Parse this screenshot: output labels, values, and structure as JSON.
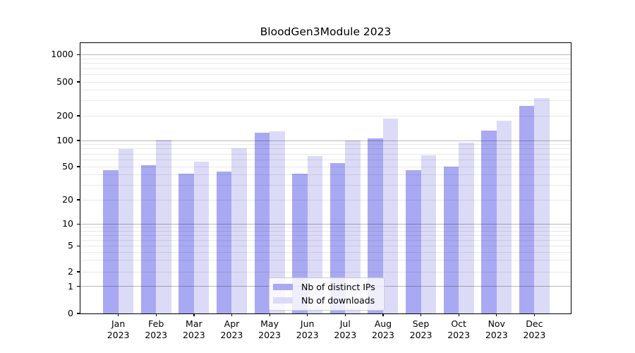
{
  "chart_data": {
    "type": "bar",
    "title": "BloodGen3Module 2023",
    "categories": [
      "Jan",
      "Feb",
      "Mar",
      "Apr",
      "May",
      "Jun",
      "Jul",
      "Aug",
      "Sep",
      "Oct",
      "Nov",
      "Dec"
    ],
    "category_year": "2023",
    "series": [
      {
        "name": "Nb of distinct IPs",
        "color": "#a9a9f3",
        "values": [
          45,
          52,
          41,
          44,
          124,
          41,
          55,
          107,
          45,
          50,
          133,
          263
        ]
      },
      {
        "name": "Nb of downloads",
        "color": "#dbdbf8",
        "values": [
          80,
          101,
          57,
          82,
          130,
          66,
          100,
          183,
          68,
          95,
          173,
          322
        ]
      }
    ],
    "yscale": "symlog",
    "ytick_labels": [
      "0",
      "1",
      "2",
      "5",
      "10",
      "20",
      "50",
      "100",
      "200",
      "500",
      "1000"
    ],
    "ylim": [
      0,
      1400
    ],
    "grid": "on",
    "legend_position": "lower center"
  },
  "colors": {
    "background": "#ffffff",
    "axis": "#000000",
    "grid_major": "#bdbdbd",
    "grid_minor": "#e8e8e8",
    "bar_distinct_ips": "#a9a9f3",
    "bar_downloads": "#dbdbf8"
  }
}
